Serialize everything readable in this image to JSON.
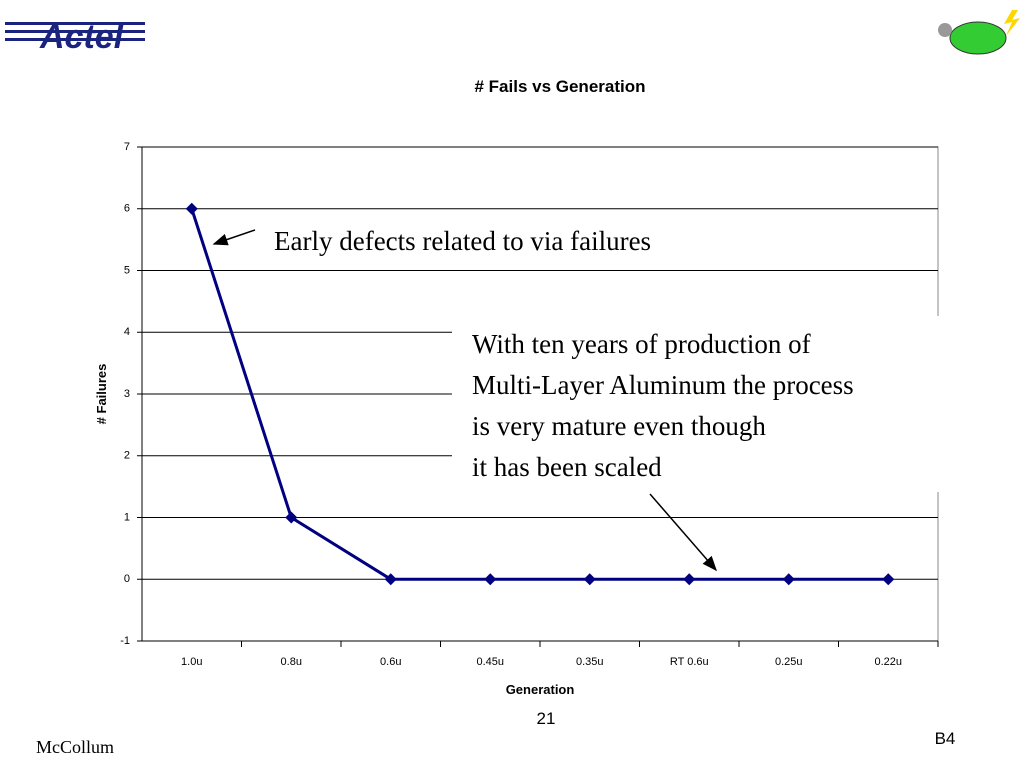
{
  "logo": "Actel",
  "chart_data": {
    "type": "line",
    "title": "# Fails vs Generation",
    "x_label": "Generation",
    "y_label": "# Failures",
    "categories": [
      "1.0u",
      "0.8u",
      "0.6u",
      "0.45u",
      "0.35u",
      "RT 0.6u",
      "0.25u",
      "0.22u"
    ],
    "series": [
      {
        "name": "# Failures",
        "color": "#000080",
        "values": [
          6,
          1,
          0,
          0,
          0,
          0,
          0,
          0
        ]
      }
    ],
    "ylim": [
      -1,
      7
    ],
    "yticks": [
      -1,
      0,
      1,
      2,
      3,
      4,
      5,
      6,
      7
    ],
    "grid": true,
    "annotations": [
      "Early defects related to via failures",
      [
        "With ten years of production of",
        "Multi-Layer Aluminum the process",
        "is very mature even though",
        "it has been scaled"
      ]
    ]
  },
  "footer": {
    "author": "McCollum",
    "page": "21",
    "code": "B4"
  }
}
